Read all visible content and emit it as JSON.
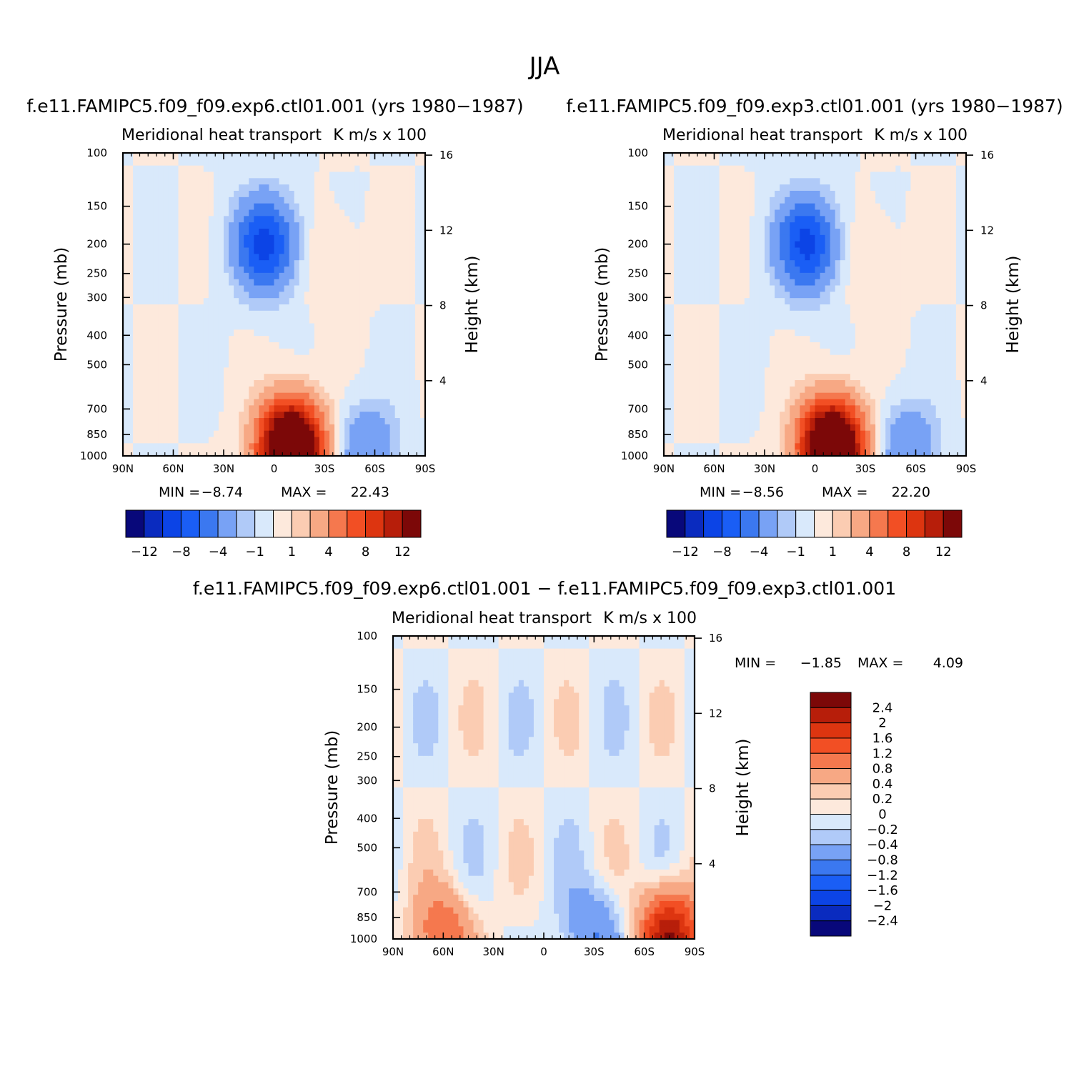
{
  "figure_title": "JJA",
  "colors": {
    "scale": [
      "#08087a",
      "#0a2bbf",
      "#0c44e6",
      "#1a5ef5",
      "#3b78f0",
      "#78a2f5",
      "#b0caf8",
      "#d9e9fb",
      "#fde9dc",
      "#fbccb2",
      "#f7a884",
      "#f5784e",
      "#f24f24",
      "#dd3510",
      "#b71e0a",
      "#7c0808"
    ]
  },
  "chart_data": [
    {
      "type": "heatmap",
      "title": "f.e11.FAMIPC5.f09_f09.exp6.ctl01.001 (yrs 1980−1987)",
      "subtitle_left": "Meridional heat transport",
      "subtitle_right": "K m/s x 100",
      "xlabel": "",
      "ylabel": "Pressure (mb)",
      "y2label": "Height (km)",
      "x_ticks": [
        "90N",
        "60N",
        "30N",
        "0",
        "30S",
        "60S",
        "90S"
      ],
      "y_ticks": [
        "100",
        "150",
        "200",
        "250",
        "300",
        "400",
        "500",
        "700",
        "850",
        "1000"
      ],
      "y2_ticks": [
        "16",
        "12",
        "8",
        "4"
      ],
      "ylim": [
        1000,
        100
      ],
      "log_y": true,
      "min_label": "MIN =",
      "min_value": "−8.74",
      "max_label": "MAX =",
      "max_value": "22.43",
      "min": -8.74,
      "max": 22.43,
      "colorbar_labels": [
        "−12",
        "−8",
        "−4",
        "−1",
        "1",
        "4",
        "8",
        "12"
      ],
      "features": [
        {
          "lat": 5,
          "p": 200,
          "value": -8.74
        },
        {
          "lat": -10,
          "p": 950,
          "value": 22.43
        },
        {
          "lat": -30,
          "p": 220,
          "value": 1
        },
        {
          "lat": -55,
          "p": 960,
          "value": -4
        }
      ]
    },
    {
      "type": "heatmap",
      "title": "f.e11.FAMIPC5.f09_f09.exp3.ctl01.001 (yrs 1980−1987)",
      "subtitle_left": "Meridional heat transport",
      "subtitle_right": "K m/s x 100",
      "xlabel": "",
      "ylabel": "Pressure (mb)",
      "y2label": "Height (km)",
      "x_ticks": [
        "90N",
        "60N",
        "30N",
        "0",
        "30S",
        "60S",
        "90S"
      ],
      "y_ticks": [
        "100",
        "150",
        "200",
        "250",
        "300",
        "400",
        "500",
        "700",
        "850",
        "1000"
      ],
      "y2_ticks": [
        "16",
        "12",
        "8",
        "4"
      ],
      "ylim": [
        1000,
        100
      ],
      "log_y": true,
      "min_label": "MIN =",
      "min_value": "−8.56",
      "max_label": "MAX =",
      "max_value": "22.20",
      "min": -8.56,
      "max": 22.2,
      "colorbar_labels": [
        "−12",
        "−8",
        "−4",
        "−1",
        "1",
        "4",
        "8",
        "12"
      ],
      "features": [
        {
          "lat": 5,
          "p": 200,
          "value": -8.56
        },
        {
          "lat": -10,
          "p": 950,
          "value": 22.2
        },
        {
          "lat": -30,
          "p": 220,
          "value": 1
        },
        {
          "lat": -55,
          "p": 960,
          "value": -4
        }
      ]
    },
    {
      "type": "heatmap",
      "title": "f.e11.FAMIPC5.f09_f09.exp6.ctl01.001 − f.e11.FAMIPC5.f09_f09.exp3.ctl01.001",
      "subtitle_left": "Meridional heat transport",
      "subtitle_right": "K m/s x 100",
      "xlabel": "",
      "ylabel": "Pressure (mb)",
      "y2label": "Height (km)",
      "x_ticks": [
        "90N",
        "60N",
        "30N",
        "0",
        "30S",
        "60S",
        "90S"
      ],
      "y_ticks": [
        "100",
        "150",
        "200",
        "250",
        "300",
        "400",
        "500",
        "700",
        "850",
        "1000"
      ],
      "y2_ticks": [
        "16",
        "12",
        "8",
        "4"
      ],
      "ylim": [
        1000,
        100
      ],
      "log_y": true,
      "min_label": "MIN =",
      "min_value": "−1.85",
      "max_label": "MAX =",
      "max_value": "4.09",
      "min": -1.85,
      "max": 4.09,
      "colorbar_labels": [
        "2.4",
        "2",
        "1.6",
        "1.2",
        "0.8",
        "0.4",
        "0.2",
        "0",
        "−0.2",
        "−0.4",
        "−0.8",
        "−1.2",
        "−1.6",
        "−2",
        "−2.4"
      ],
      "features": [
        {
          "lat": 60,
          "p": 980,
          "value": 1.2
        },
        {
          "lat": -75,
          "p": 980,
          "value": 2.4
        },
        {
          "lat": -30,
          "p": 950,
          "value": -0.8
        }
      ]
    }
  ]
}
